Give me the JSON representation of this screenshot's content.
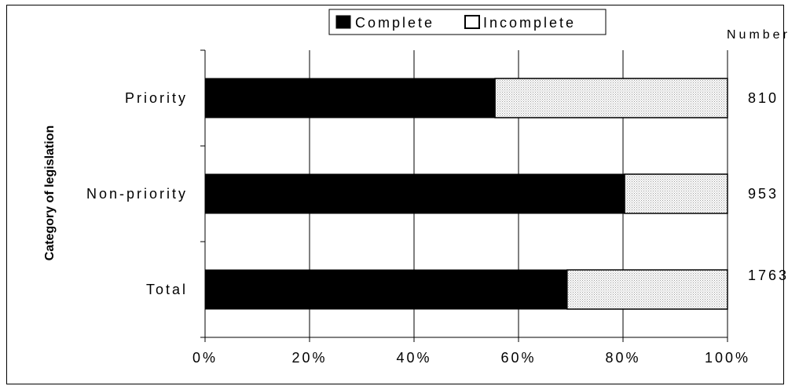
{
  "chart_data": {
    "type": "bar",
    "orientation": "horizontal",
    "stacked": true,
    "percent": true,
    "title": "",
    "ylabel": "Category of legislation",
    "xlabel": "",
    "categories": [
      "Priority",
      "Non-priority",
      "Total"
    ],
    "series": [
      {
        "name": "Complete",
        "values": [
          55.5,
          80.3,
          69.3
        ],
        "color": "#000000"
      },
      {
        "name": "Incomplete",
        "values": [
          44.5,
          19.7,
          30.7
        ],
        "color": "#ececec"
      }
    ],
    "xlim": [
      0,
      100
    ],
    "xticks": [
      "0%",
      "20%",
      "40%",
      "60%",
      "80%",
      "100%"
    ],
    "grid": true,
    "legend": "top-center",
    "number_header": "Number",
    "numbers": [
      "810",
      "953",
      "1763"
    ]
  }
}
